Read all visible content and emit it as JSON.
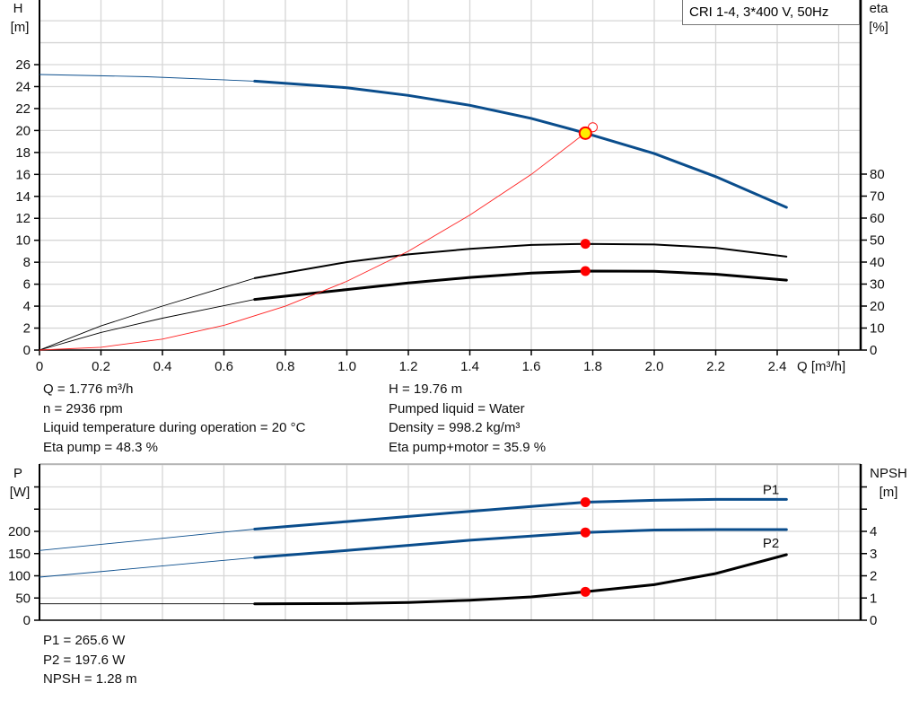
{
  "colors": {
    "head": "#0a4d8c",
    "eta": "#000000",
    "system": "#ff2020",
    "marker": "#ff0000",
    "duty_point_fill": "#ffee00",
    "grid": "#d6d6d6"
  },
  "title_box": "CRI 1-4, 3*400 V, 50Hz",
  "chart_data": [
    {
      "type": "line",
      "xlabel": "Q [m³/h]",
      "ylabel_left": [
        "H",
        "[m]"
      ],
      "ylabel_right": [
        "eta",
        "[%]"
      ],
      "x_ticks": [
        "0",
        "0.2",
        "0.4",
        "0.6",
        "0.8",
        "1.0",
        "1.2",
        "1.4",
        "1.6",
        "1.8",
        "2.0",
        "2.2",
        "2.4"
      ],
      "y_left_ticks": [
        "0",
        "2",
        "4",
        "6",
        "8",
        "10",
        "12",
        "14",
        "16",
        "18",
        "20",
        "22",
        "24",
        "26"
      ],
      "y_right_ticks": [
        "0",
        "10",
        "20",
        "30",
        "40",
        "50",
        "60",
        "70",
        "80"
      ],
      "xlim": [
        0,
        2.6
      ],
      "ylim_left": [
        0,
        32
      ],
      "ylim_right": [
        0,
        160
      ],
      "grid": true,
      "series": [
        {
          "key": "H",
          "axis": "left",
          "thick_from": 0.7,
          "x": [
            0,
            0.35,
            0.7,
            1.0,
            1.2,
            1.4,
            1.6,
            1.776,
            2.0,
            2.2,
            2.43
          ],
          "y": [
            25.1,
            24.9,
            24.5,
            23.9,
            23.2,
            22.3,
            21.1,
            19.76,
            17.9,
            15.8,
            13.0
          ]
        },
        {
          "key": "eta_pump",
          "axis": "right",
          "thick_from": 0.7,
          "x": [
            0,
            0.2,
            0.4,
            0.7,
            1.0,
            1.2,
            1.4,
            1.6,
            1.776,
            2.0,
            2.2,
            2.43
          ],
          "y": [
            0,
            11,
            20,
            32.7,
            40,
            43.5,
            46,
            47.8,
            48.3,
            48,
            46.5,
            42.5
          ]
        },
        {
          "key": "eta_pump_motor",
          "axis": "right",
          "thick_from": 0.7,
          "x": [
            0,
            0.2,
            0.4,
            0.7,
            1.0,
            1.2,
            1.4,
            1.6,
            1.776,
            2.0,
            2.2,
            2.43
          ],
          "y": [
            0,
            8,
            14.5,
            23,
            27.5,
            30.5,
            33,
            35,
            35.9,
            35.8,
            34.5,
            31.8
          ]
        },
        {
          "key": "system",
          "axis": "left",
          "thin": true,
          "x": [
            0,
            0.2,
            0.4,
            0.6,
            0.8,
            1.0,
            1.2,
            1.4,
            1.6,
            1.8
          ],
          "y": [
            0,
            0.25,
            1.0,
            2.25,
            4.0,
            6.26,
            9.0,
            12.3,
            16.0,
            20.3
          ]
        }
      ],
      "duty_points": [
        {
          "x": 1.776,
          "y": 19.76,
          "axis": "left",
          "style": "yellow"
        },
        {
          "x": 1.776,
          "y": 48.3,
          "axis": "right"
        },
        {
          "x": 1.776,
          "y": 35.9,
          "axis": "right"
        }
      ],
      "open_point": {
        "x": 1.8,
        "y": 20.3
      }
    },
    {
      "type": "line",
      "ylabel_left": [
        "P",
        "[W]"
      ],
      "ylabel_right": [
        "NPSH",
        "[m]"
      ],
      "y_left_ticks": [
        "0",
        "50",
        "100",
        "150",
        "200"
      ],
      "y_right_ticks": [
        "0",
        "1",
        "2",
        "3",
        "4"
      ],
      "xlim": [
        0,
        2.6
      ],
      "ylim_left": [
        0,
        350
      ],
      "ylim_right": [
        0,
        7
      ],
      "grid": true,
      "series": [
        {
          "name": "P1",
          "key": "P1",
          "axis": "left",
          "thick_from": 0.7,
          "x": [
            0,
            0.35,
            0.7,
            1.0,
            1.4,
            1.776,
            2.0,
            2.2,
            2.43
          ],
          "y": [
            157,
            181,
            205,
            222,
            245,
            265.6,
            270,
            272,
            272
          ]
        },
        {
          "name": "P2",
          "key": "P2",
          "axis": "left",
          "thick_from": 0.7,
          "x": [
            0,
            0.35,
            0.7,
            1.0,
            1.4,
            1.776,
            2.0,
            2.2,
            2.43
          ],
          "y": [
            97,
            119,
            141,
            157,
            180,
            197.6,
            203,
            204,
            204
          ]
        },
        {
          "key": "NPSH",
          "axis": "right",
          "thick_from": 0.7,
          "x": [
            0,
            0.35,
            0.7,
            1.0,
            1.2,
            1.4,
            1.6,
            1.776,
            2.0,
            2.2,
            2.43
          ],
          "y": [
            0.74,
            0.74,
            0.74,
            0.75,
            0.8,
            0.9,
            1.05,
            1.28,
            1.6,
            2.1,
            2.95
          ]
        }
      ],
      "duty_points": [
        {
          "x": 1.776,
          "y": 265.6,
          "axis": "left"
        },
        {
          "x": 1.776,
          "y": 197.6,
          "axis": "left"
        },
        {
          "x": 1.776,
          "y": 1.28,
          "axis": "right"
        }
      ]
    }
  ],
  "info_top": {
    "q": "Q = 1.776 m³/h",
    "n": "n = 2936 rpm",
    "temp": "Liquid temperature during operation = 20 °C",
    "eta_pump": "Eta pump = 48.3 %",
    "h": "H = 19.76 m",
    "liquid": "Pumped liquid = Water",
    "density": "Density = 998.2 kg/m³",
    "eta_total": "Eta pump+motor = 35.9 %"
  },
  "info_bottom": {
    "p1": "P1 = 265.6 W",
    "p2": "P2 = 197.6 W",
    "npsh": "NPSH = 1.28 m"
  }
}
